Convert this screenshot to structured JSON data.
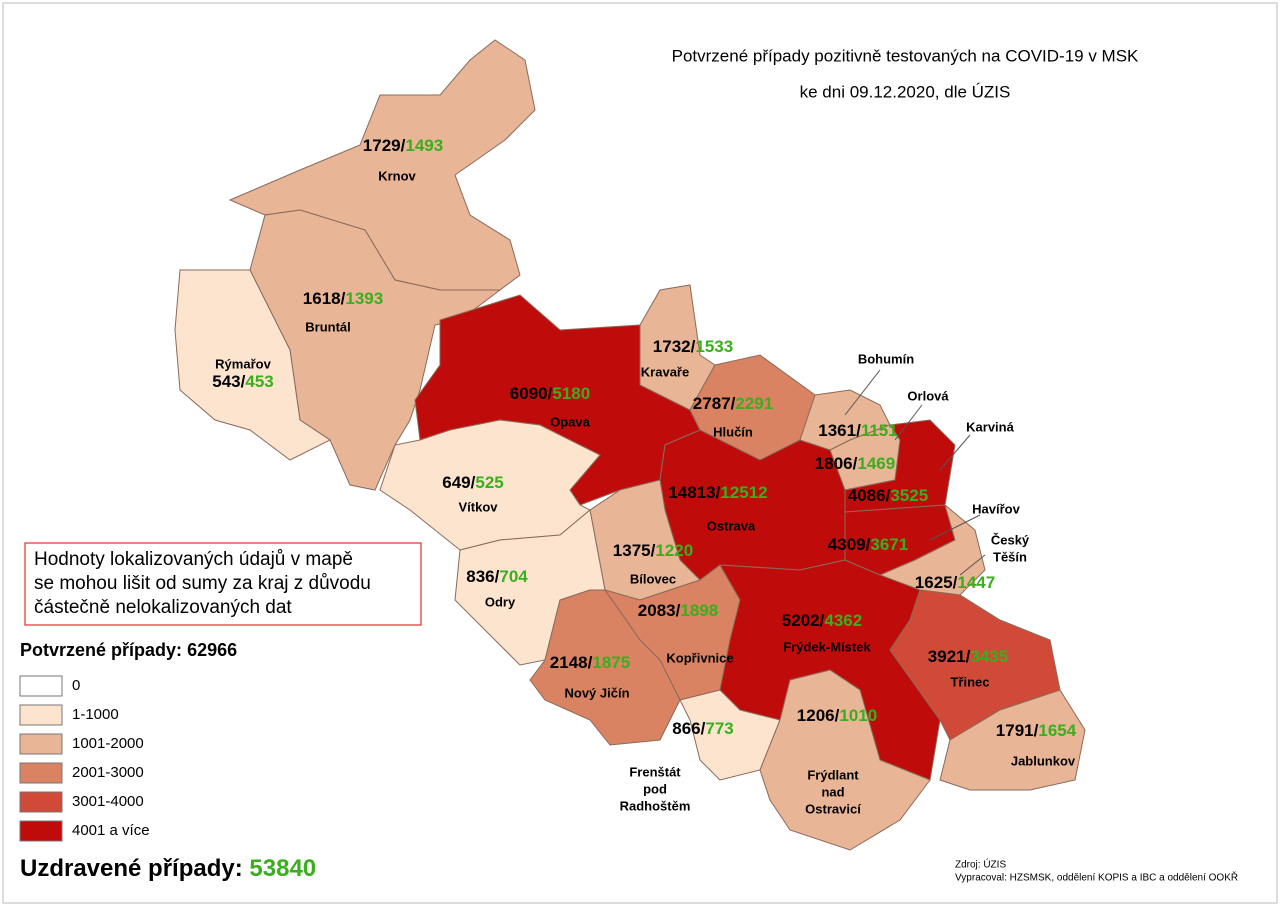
{
  "title": [
    "Potvrzené případy pozitivně testovaných na COVID-19 v MSK",
    "ke dni 09.12.2020, dle ÚZIS"
  ],
  "separator": "/",
  "note": [
    "Hodnoty lokalizovaných údajů v mapě",
    "se mohou lišit od sumy za kraj z důvodu",
    "částečně nelokalizovaných dat"
  ],
  "confirmed_total": {
    "label": "Potvrzené případy:",
    "value": 62966
  },
  "recovered_total": {
    "label": "Uzdravené případy:",
    "value": 53840
  },
  "legend": [
    {
      "label": "0",
      "color": "#ffffff"
    },
    {
      "label": "1-1000",
      "color": "#fde4cf"
    },
    {
      "label": "1001-2000",
      "color": "#e8b597"
    },
    {
      "label": "2001-3000",
      "color": "#da8362"
    },
    {
      "label": "3001-4000",
      "color": "#d14a38"
    },
    {
      "label": "4001 a více",
      "color": "#c00b0b"
    }
  ],
  "regions": [
    {
      "name": [
        "Krnov"
      ],
      "confirmed": 1729,
      "recovered": 1493,
      "color": "#e8b597"
    },
    {
      "name": [
        "Bruntál"
      ],
      "confirmed": 1618,
      "recovered": 1393,
      "color": "#e8b597"
    },
    {
      "name": [
        "Rýmařov"
      ],
      "confirmed": 543,
      "recovered": 453,
      "color": "#fde4cf"
    },
    {
      "name": [
        "Opava"
      ],
      "confirmed": 6090,
      "recovered": 5180,
      "color": "#c00b0b"
    },
    {
      "name": [
        "Kravaře"
      ],
      "confirmed": 1732,
      "recovered": 1533,
      "color": "#e8b597"
    },
    {
      "name": [
        "Hlučín"
      ],
      "confirmed": 2787,
      "recovered": 2291,
      "color": "#da8362"
    },
    {
      "name": [
        "Bohumín"
      ],
      "confirmed": 1361,
      "recovered": 1151,
      "color": "#e8b597"
    },
    {
      "name": [
        "Orlová"
      ],
      "confirmed": 1806,
      "recovered": 1469,
      "color": "#e8b597"
    },
    {
      "name": [
        "Karviná"
      ],
      "confirmed": 4086,
      "recovered": 3525,
      "color": "#c00b0b"
    },
    {
      "name": [
        "Ostrava"
      ],
      "confirmed": 14813,
      "recovered": 12512,
      "color": "#c00b0b"
    },
    {
      "name": [
        "Havířov"
      ],
      "confirmed": 4309,
      "recovered": 3671,
      "color": "#c00b0b"
    },
    {
      "name": [
        "Český",
        "Těšín"
      ],
      "confirmed": 1625,
      "recovered": 1447,
      "color": "#e8b597"
    },
    {
      "name": [
        "Vítkov"
      ],
      "confirmed": 649,
      "recovered": 525,
      "color": "#fde4cf"
    },
    {
      "name": [
        "Bílovec"
      ],
      "confirmed": 1375,
      "recovered": 1220,
      "color": "#e8b597"
    },
    {
      "name": [
        "Odry"
      ],
      "confirmed": 836,
      "recovered": 704,
      "color": "#fde4cf"
    },
    {
      "name": [
        "Kopřivnice"
      ],
      "confirmed": 2083,
      "recovered": 1898,
      "color": "#da8362"
    },
    {
      "name": [
        "Frýdek-Místek"
      ],
      "confirmed": 5202,
      "recovered": 4362,
      "color": "#c00b0b"
    },
    {
      "name": [
        "Nový Jičín"
      ],
      "confirmed": 2148,
      "recovered": 1875,
      "color": "#da8362"
    },
    {
      "name": [
        "Třinec"
      ],
      "confirmed": 3921,
      "recovered": 3435,
      "color": "#d14a38"
    },
    {
      "name": [
        "Frenštát",
        "pod",
        "Radhoštěm"
      ],
      "confirmed": 866,
      "recovered": 773,
      "color": "#fde4cf"
    },
    {
      "name": [
        "Frýdlant",
        "nad",
        "Ostravicí"
      ],
      "confirmed": 1206,
      "recovered": 1010,
      "color": "#e8b597"
    },
    {
      "name": [
        "Jablunkov"
      ],
      "confirmed": 1791,
      "recovered": 1654,
      "color": "#e8b597"
    }
  ],
  "source": [
    "Zdroj: ÚZIS",
    "Vypracoval: HZSMSK, oddělení KOPIS a IBC a oddělení OOKŘ"
  ]
}
